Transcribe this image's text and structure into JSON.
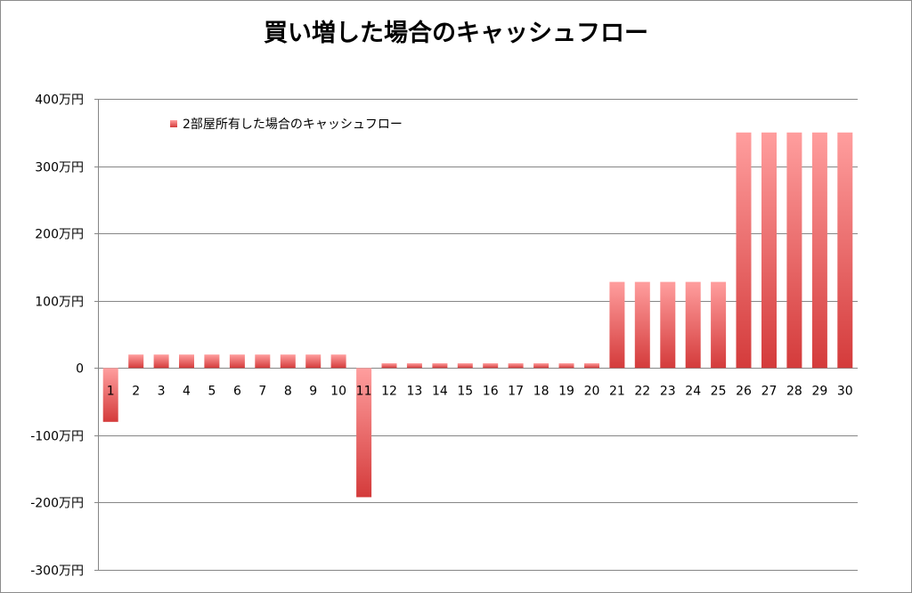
{
  "chart_data": {
    "type": "bar",
    "title": "買い増した場合のキャッシュフロー",
    "xlabel": "",
    "ylabel": "",
    "legend": {
      "position": "top-left",
      "entries": [
        "2部屋所有した場合のキャッシュフロー"
      ]
    },
    "grid": true,
    "ylim": [
      -300,
      400
    ],
    "y_ticks": [
      400,
      300,
      200,
      100,
      0,
      -100,
      -200,
      -300
    ],
    "y_tick_labels": [
      "400万円",
      "300万円",
      "200万円",
      "100万円",
      "0",
      "-100万円",
      "-200万円",
      "-300万円"
    ],
    "categories": [
      "1",
      "2",
      "3",
      "4",
      "5",
      "6",
      "7",
      "8",
      "9",
      "10",
      "11",
      "12",
      "13",
      "14",
      "15",
      "16",
      "17",
      "18",
      "19",
      "20",
      "21",
      "22",
      "23",
      "24",
      "25",
      "26",
      "27",
      "28",
      "29",
      "30"
    ],
    "series": [
      {
        "name": "2部屋所有した場合のキャッシュフロー",
        "color": "#d9393b",
        "color_light": "#ff9e9e",
        "values": [
          -80,
          20,
          20,
          20,
          20,
          20,
          20,
          20,
          20,
          20,
          -192,
          7,
          7,
          7,
          7,
          7,
          7,
          7,
          7,
          7,
          128,
          128,
          128,
          128,
          128,
          350,
          350,
          350,
          350,
          350
        ]
      }
    ]
  }
}
